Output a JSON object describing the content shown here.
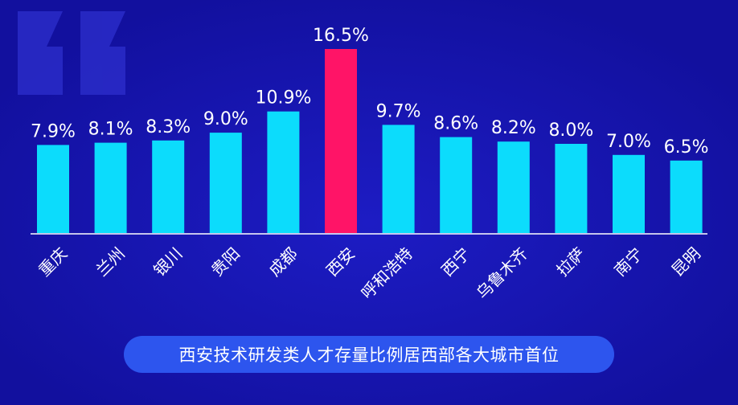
{
  "chart_data": {
    "type": "bar",
    "categories": [
      "重庆",
      "兰州",
      "银川",
      "贵阳",
      "成都",
      "西安",
      "呼和浩特",
      "西宁",
      "乌鲁木齐",
      "拉萨",
      "南宁",
      "昆明"
    ],
    "values": [
      7.9,
      8.1,
      8.3,
      9.0,
      10.9,
      16.5,
      9.7,
      8.6,
      8.2,
      8.0,
      7.0,
      6.5
    ],
    "value_labels": [
      "7.9%",
      "8.1%",
      "8.3%",
      "9.0%",
      "10.9%",
      "16.5%",
      "9.7%",
      "8.6%",
      "8.2%",
      "8.0%",
      "7.0%",
      "6.5%"
    ],
    "highlight_category": "西安",
    "ylim": [
      0,
      16.5
    ],
    "grid": false,
    "legend": "none",
    "title": "",
    "xlabel": "",
    "ylabel": ""
  },
  "colors": {
    "background": "#1410a6",
    "bar": "#0cdcfc",
    "highlight_bar": "#ff1467",
    "caption_pill": "#2d55ee",
    "text": "#ffffff"
  },
  "caption": "西安技术研发类人才存量比例居西部各大城市首位"
}
